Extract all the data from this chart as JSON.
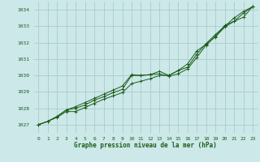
{
  "background_color": "#cce8e8",
  "grid_color": "#aacccc",
  "line_color": "#1a5c1a",
  "xlabel": "Graphe pression niveau de la mer (hPa)",
  "ylim": [
    1026.5,
    1034.5
  ],
  "xlim": [
    -0.5,
    23.5
  ],
  "yticks": [
    1027,
    1028,
    1029,
    1030,
    1031,
    1032,
    1033,
    1034
  ],
  "xticks": [
    0,
    1,
    2,
    3,
    4,
    5,
    6,
    7,
    8,
    9,
    10,
    11,
    12,
    13,
    14,
    15,
    16,
    17,
    18,
    19,
    20,
    21,
    22,
    23
  ],
  "hours": [
    0,
    1,
    2,
    3,
    4,
    5,
    6,
    7,
    8,
    9,
    10,
    11,
    12,
    13,
    14,
    15,
    16,
    17,
    18,
    19,
    20,
    21,
    22,
    23
  ],
  "line1": [
    1027.0,
    1027.2,
    1027.45,
    1027.8,
    1027.8,
    1028.05,
    1028.3,
    1028.55,
    1028.75,
    1028.95,
    1029.5,
    1029.65,
    1029.8,
    1030.0,
    1030.0,
    1030.3,
    1030.7,
    1031.5,
    1031.9,
    1032.35,
    1032.95,
    1033.3,
    1033.55,
    1034.2
  ],
  "line2": [
    1027.0,
    1027.2,
    1027.5,
    1027.9,
    1028.0,
    1028.2,
    1028.5,
    1028.7,
    1028.95,
    1029.15,
    1030.0,
    1030.0,
    1030.05,
    1030.1,
    1029.95,
    1030.1,
    1030.4,
    1031.1,
    1031.85,
    1032.4,
    1033.05,
    1033.3,
    1033.8,
    1034.2
  ],
  "line3": [
    1027.0,
    1027.2,
    1027.5,
    1027.9,
    1028.1,
    1028.35,
    1028.6,
    1028.85,
    1029.1,
    1029.35,
    1030.05,
    1030.0,
    1030.05,
    1030.25,
    1030.0,
    1030.3,
    1030.5,
    1031.3,
    1031.95,
    1032.5,
    1033.0,
    1033.5,
    1033.9,
    1034.2
  ],
  "marker_color": "#1a5c1a",
  "title_color": "#1a5c1a",
  "tick_color": "#1a5c1a",
  "xlabel_fontsize": 5.5,
  "tick_fontsize": 4.5
}
